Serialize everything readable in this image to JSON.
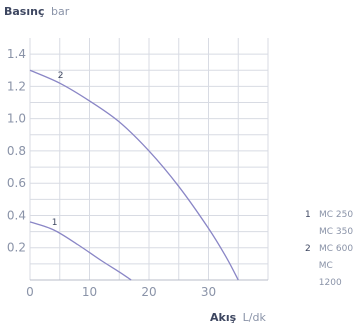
{
  "chart_data": {
    "type": "line",
    "ylabel_bold": "Basınç",
    "ylabel_unit": "bar",
    "xlabel_bold": "Akış",
    "xlabel_unit": "L/dk",
    "xlim": [
      0,
      40
    ],
    "ylim": [
      0,
      1.5
    ],
    "xticks": [
      "0",
      "10",
      "20",
      "30"
    ],
    "yticks": [
      "0.2",
      "0.4",
      "0.6",
      "0.8",
      "1.0",
      "1.2",
      "1.4"
    ],
    "grid": true,
    "series": [
      {
        "name": "1",
        "color": "#8a86c6",
        "x": [
          0,
          4,
          8,
          12,
          15,
          17
        ],
        "y": [
          0.36,
          0.31,
          0.22,
          0.12,
          0.05,
          0.0
        ]
      },
      {
        "name": "2",
        "color": "#8a86c6",
        "x": [
          0,
          5,
          10,
          15,
          20,
          25,
          30,
          33,
          35
        ],
        "y": [
          1.3,
          1.22,
          1.11,
          0.98,
          0.8,
          0.58,
          0.32,
          0.14,
          0.0
        ]
      }
    ],
    "legend": [
      {
        "num": "1",
        "text": "MC 250"
      },
      {
        "num": "",
        "text": "MC 350"
      },
      {
        "num": "2",
        "text": "MC 600"
      },
      {
        "num": "",
        "text": "MC 1200"
      }
    ]
  }
}
